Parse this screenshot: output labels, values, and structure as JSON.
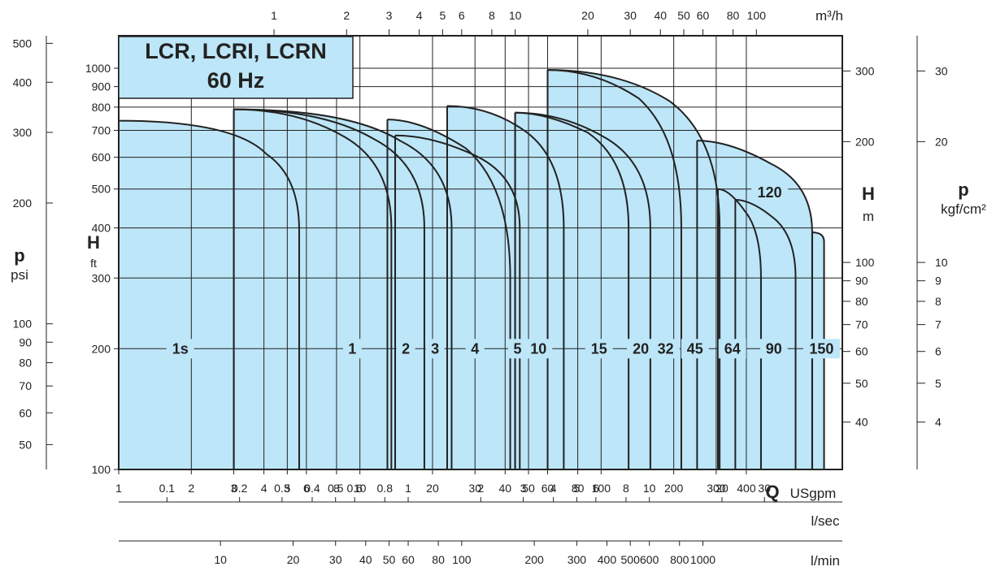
{
  "chart_data": {
    "type": "area",
    "title": "LCR, LCRI, LCRN",
    "subtitle": "60 Hz",
    "x_scale": "log",
    "y_scale": "log",
    "x_axis": {
      "unit": "USgpm",
      "symbol": "Q",
      "range": [
        1,
        1000
      ],
      "ticks": [
        "1",
        "2",
        "3",
        "4",
        "5",
        "6",
        "8",
        "10",
        "20",
        "30",
        "40",
        "50",
        "60",
        "80",
        "100",
        "200",
        "300",
        "400"
      ]
    },
    "x_axis_top": {
      "unit": "m³/h",
      "ticks": [
        "1",
        "2",
        "3",
        "4",
        "5",
        "6",
        "8",
        "10",
        "20",
        "30",
        "40",
        "50",
        "60",
        "80",
        "100"
      ]
    },
    "x_axis_lsec": {
      "unit": "l/sec",
      "ticks": [
        "0.1",
        "0.2",
        "0.3",
        "0.4",
        "0.5",
        "0.6",
        "0.8",
        "1",
        "2",
        "3",
        "4",
        "5",
        "6",
        "8",
        "10",
        "20",
        "30"
      ]
    },
    "x_axis_lmin": {
      "unit": "l/min",
      "ticks": [
        "10",
        "20",
        "30",
        "40",
        "50",
        "60",
        "80",
        "100",
        "200",
        "300",
        "400",
        "500",
        "600",
        "800",
        "1000"
      ]
    },
    "y_axis_left": {
      "symbol": "H",
      "unit": "ft",
      "range": [
        100,
        1000
      ],
      "ticks": [
        "100",
        "200",
        "300",
        "400",
        "500",
        "600",
        "700",
        "800",
        "900",
        "1000"
      ]
    },
    "y_axis_right": {
      "symbol": "H",
      "unit": "m",
      "ticks": [
        "40",
        "50",
        "60",
        "70",
        "80",
        "90",
        "100",
        "200",
        "300"
      ]
    },
    "y_axis_psi": {
      "symbol": "p",
      "unit": "psi",
      "ticks": [
        "50",
        "60",
        "70",
        "80",
        "90",
        "100",
        "200",
        "300",
        "400",
        "500"
      ]
    },
    "y_axis_kgf": {
      "symbol": "p",
      "unit": "kgf/cm²",
      "ticks": [
        "4",
        "5",
        "6",
        "7",
        "8",
        "9",
        "10",
        "20",
        "30"
      ]
    },
    "series": [
      {
        "name": "1s",
        "q_min": 1,
        "q_max": 5.6,
        "h_start": 740,
        "h_knee": 660,
        "q_knee": 3,
        "h_end": 395,
        "label_q": 1.8,
        "label_h": 200
      },
      {
        "name": "1",
        "q_min": 3,
        "q_max": 13.5,
        "h_start": 790,
        "q_knee": 5.5,
        "h_knee": 740,
        "h_end": 400,
        "label_q": 9.3,
        "label_h": 200
      },
      {
        "name": "2",
        "q_min": 3,
        "q_max": 18.5,
        "h_start": 790,
        "q_knee": 7,
        "h_knee": 730,
        "h_end": 400,
        "label_q": 15.5,
        "label_h": 200
      },
      {
        "name": "3",
        "q_min": 3,
        "q_max": 24,
        "h_start": 790,
        "q_knee": 9,
        "h_knee": 720,
        "h_end": 400,
        "label_q": 20.5,
        "label_h": 200
      },
      {
        "name": "4",
        "q_min": 13,
        "q_max": 42,
        "h_start": 745,
        "q_knee": 18,
        "h_knee": 720,
        "h_end": 300,
        "label_q": 30,
        "label_h": 200
      },
      {
        "name": "5",
        "q_min": 14,
        "q_max": 46,
        "h_start": 680,
        "q_knee": 20,
        "h_knee": 650,
        "h_end": 400,
        "label_q": 45,
        "label_h": 200
      },
      {
        "name": "10",
        "q_min": 23,
        "q_max": 70,
        "h_start": 805,
        "q_knee": 35,
        "h_knee": 760,
        "h_end": 400,
        "label_q": 55,
        "label_h": 200
      },
      {
        "name": "15",
        "q_min": 44,
        "q_max": 130,
        "h_start": 775,
        "q_knee": 60,
        "h_knee": 760,
        "h_end": 400,
        "label_q": 98,
        "label_h": 200
      },
      {
        "name": "20",
        "q_min": 44,
        "q_max": 160,
        "h_start": 775,
        "q_knee": 70,
        "h_knee": 730,
        "h_end": 400,
        "label_q": 146,
        "label_h": 200
      },
      {
        "name": "32",
        "q_min": 60,
        "q_max": 215,
        "h_start": 990,
        "q_knee": 95,
        "h_knee": 960,
        "h_end": 400,
        "label_q": 185,
        "label_h": 200
      },
      {
        "name": "45",
        "q_min": 60,
        "q_max": 310,
        "h_start": 990,
        "q_knee": 120,
        "h_knee": 940,
        "h_end": 400,
        "label_q": 245,
        "label_h": 200
      },
      {
        "name": "64",
        "q_min": 305,
        "q_max": 460,
        "h_start": 500,
        "q_knee": 340,
        "h_knee": 470,
        "h_end": 300,
        "label_q": 350,
        "label_h": 200
      },
      {
        "name": "90",
        "q_min": 360,
        "q_max": 640,
        "h_start": 470,
        "q_knee": 420,
        "h_knee": 450,
        "h_end": 300,
        "label_q": 520,
        "label_h": 200
      },
      {
        "name": "120",
        "q_min": 250,
        "q_max": 750,
        "h_start": 660,
        "q_knee": 340,
        "h_knee": 620,
        "h_end": 390,
        "label_q": 500,
        "label_h": 490
      },
      {
        "name": "150",
        "q_min": 750,
        "q_max": 840,
        "h_start": 390,
        "q_knee": 770,
        "h_knee": 390,
        "h_end": 370,
        "label_q": 820,
        "label_h": 200
      }
    ],
    "fill_color": "#bde6f8",
    "stroke_color": "#222222",
    "grid": true
  }
}
